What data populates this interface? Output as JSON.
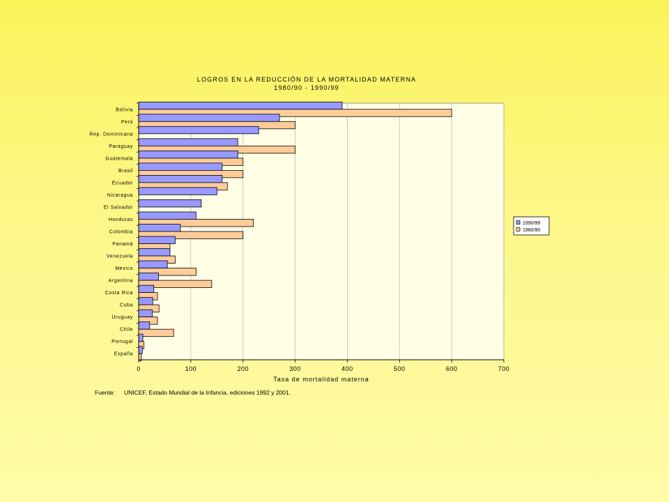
{
  "chart_data": {
    "type": "bar",
    "orientation": "horizontal",
    "title": "LOGROS EN LA REDUCCIÓN DE LA MORTALIDAD MATERNA",
    "subtitle": "1980/90 - 1990/99",
    "xlabel": "Tasa de mortalidad materna",
    "ylabel": "",
    "xlim": [
      0,
      700
    ],
    "xticks": [
      0,
      100,
      200,
      300,
      400,
      500,
      600,
      700
    ],
    "grid": true,
    "legend_position": "right",
    "categories": [
      "Bolivia",
      "Perú",
      "Rep. Dominicana",
      "Paraguay",
      "Guatemala",
      "Brasil",
      "Ecuador",
      "Nicaragua",
      "El Salvador",
      "Honduras",
      "Colombia",
      "Panamá",
      "Venezuela",
      "Mexico",
      "Argentina",
      "Costa Rica",
      "Cuba",
      "Uruguay",
      "Chile",
      "Portugal",
      "España"
    ],
    "series": [
      {
        "name": "1990/99",
        "color": "#9999ff",
        "values": [
          390,
          270,
          230,
          190,
          190,
          160,
          160,
          150,
          120,
          110,
          80,
          70,
          60,
          55,
          38,
          29,
          27,
          26,
          21,
          8,
          7
        ]
      },
      {
        "name": "1980/90",
        "color": "#ffcc99",
        "values": [
          600,
          300,
          null,
          300,
          200,
          200,
          170,
          null,
          null,
          220,
          200,
          60,
          70,
          110,
          140,
          36,
          39,
          36,
          67,
          10,
          5
        ]
      }
    ]
  },
  "source": {
    "label": "Fuente:",
    "text": "UNICEF, Estado Mundial de la Infancia, ediciones 1992 y 2001."
  },
  "colors": {
    "plot_background": "#ffffe6",
    "gridline": "#bcbcbc",
    "outline": "#000000"
  }
}
